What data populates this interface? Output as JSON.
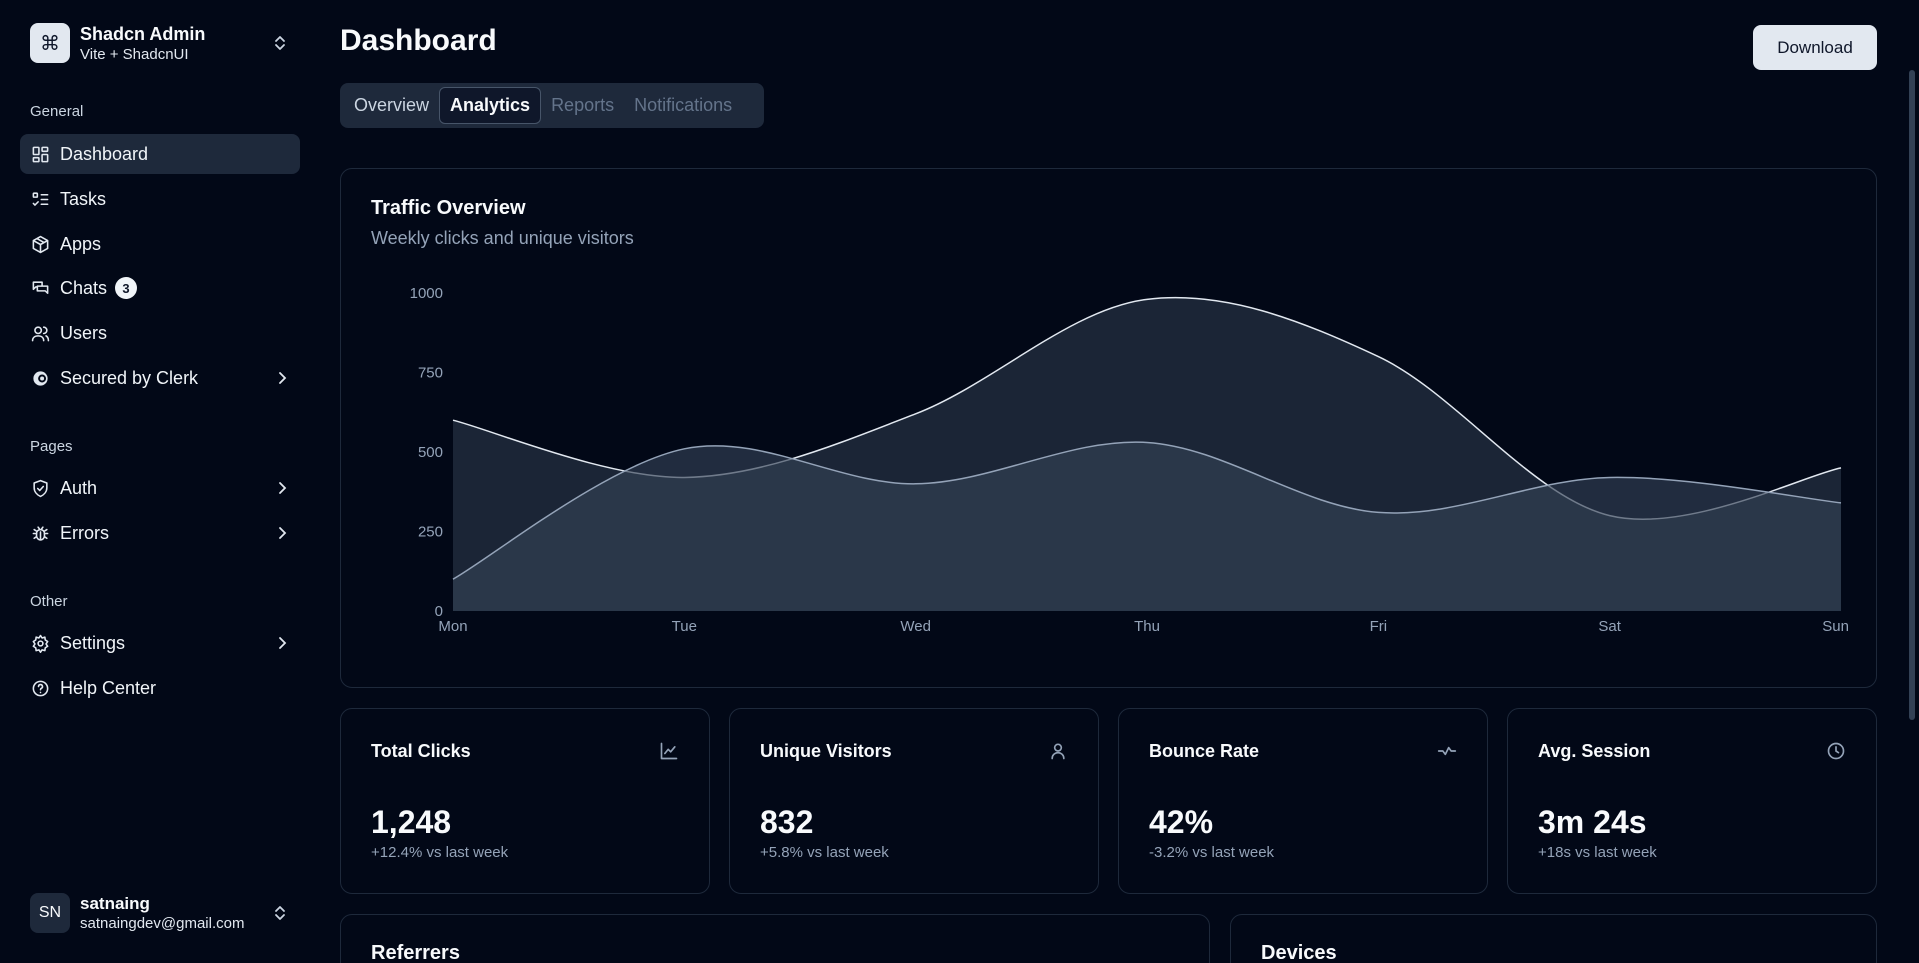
{
  "team": {
    "name": "Shadcn Admin",
    "subtitle": "Vite + ShadcnUI",
    "logo_icon": "command-icon"
  },
  "sidebar": {
    "groups": [
      {
        "label": "General"
      },
      {
        "label": "Pages"
      },
      {
        "label": "Other"
      }
    ],
    "items": [
      {
        "label": "Dashboard",
        "icon": "layout-dashboard-icon"
      },
      {
        "label": "Tasks",
        "icon": "list-todo-icon"
      },
      {
        "label": "Apps",
        "icon": "package-icon"
      },
      {
        "label": "Chats",
        "icon": "messages-icon",
        "badge": "3"
      },
      {
        "label": "Users",
        "icon": "users-icon"
      },
      {
        "label": "Secured by Clerk",
        "icon": "clerk-icon"
      },
      {
        "label": "Auth",
        "icon": "shield-check-icon"
      },
      {
        "label": "Errors",
        "icon": "bug-icon"
      },
      {
        "label": "Settings",
        "icon": "settings-icon"
      },
      {
        "label": "Help Center",
        "icon": "help-circle-icon"
      }
    ]
  },
  "user": {
    "initials": "SN",
    "name": "satnaing",
    "email": "satnaingdev@gmail.com"
  },
  "header": {
    "title": "Dashboard",
    "download_label": "Download"
  },
  "tabs": [
    {
      "label": "Overview"
    },
    {
      "label": "Analytics"
    },
    {
      "label": "Reports"
    },
    {
      "label": "Notifications"
    }
  ],
  "traffic": {
    "title": "Traffic Overview",
    "description": "Weekly clicks and unique visitors"
  },
  "chart_data": {
    "type": "area",
    "categories": [
      "Mon",
      "Tue",
      "Wed",
      "Thu",
      "Fri",
      "Sat",
      "Sun"
    ],
    "series": [
      {
        "values": [
          600,
          420,
          620,
          980,
          800,
          300,
          450
        ]
      },
      {
        "values": [
          100,
          510,
          400,
          530,
          310,
          420,
          340
        ]
      }
    ],
    "ylim": [
      0,
      1000
    ],
    "yticks": [
      0,
      250,
      500,
      750,
      1000
    ],
    "grid": false,
    "colors": {
      "fill": "#334155",
      "line1": "#e2e8f0",
      "line2": "#94a3b8"
    }
  },
  "stats": [
    {
      "title": "Total Clicks",
      "value": "1,248",
      "change": "+12.4% vs last week",
      "icon": "line-chart-icon"
    },
    {
      "title": "Unique Visitors",
      "value": "832",
      "change": "+5.8% vs last week",
      "icon": "user-icon"
    },
    {
      "title": "Bounce Rate",
      "value": "42%",
      "change": "-3.2% vs last week",
      "icon": "activity-icon"
    },
    {
      "title": "Avg. Session",
      "value": "3m 24s",
      "change": "+18s vs last week",
      "icon": "clock-icon"
    }
  ],
  "sections": {
    "referrers": "Referrers",
    "devices": "Devices"
  }
}
